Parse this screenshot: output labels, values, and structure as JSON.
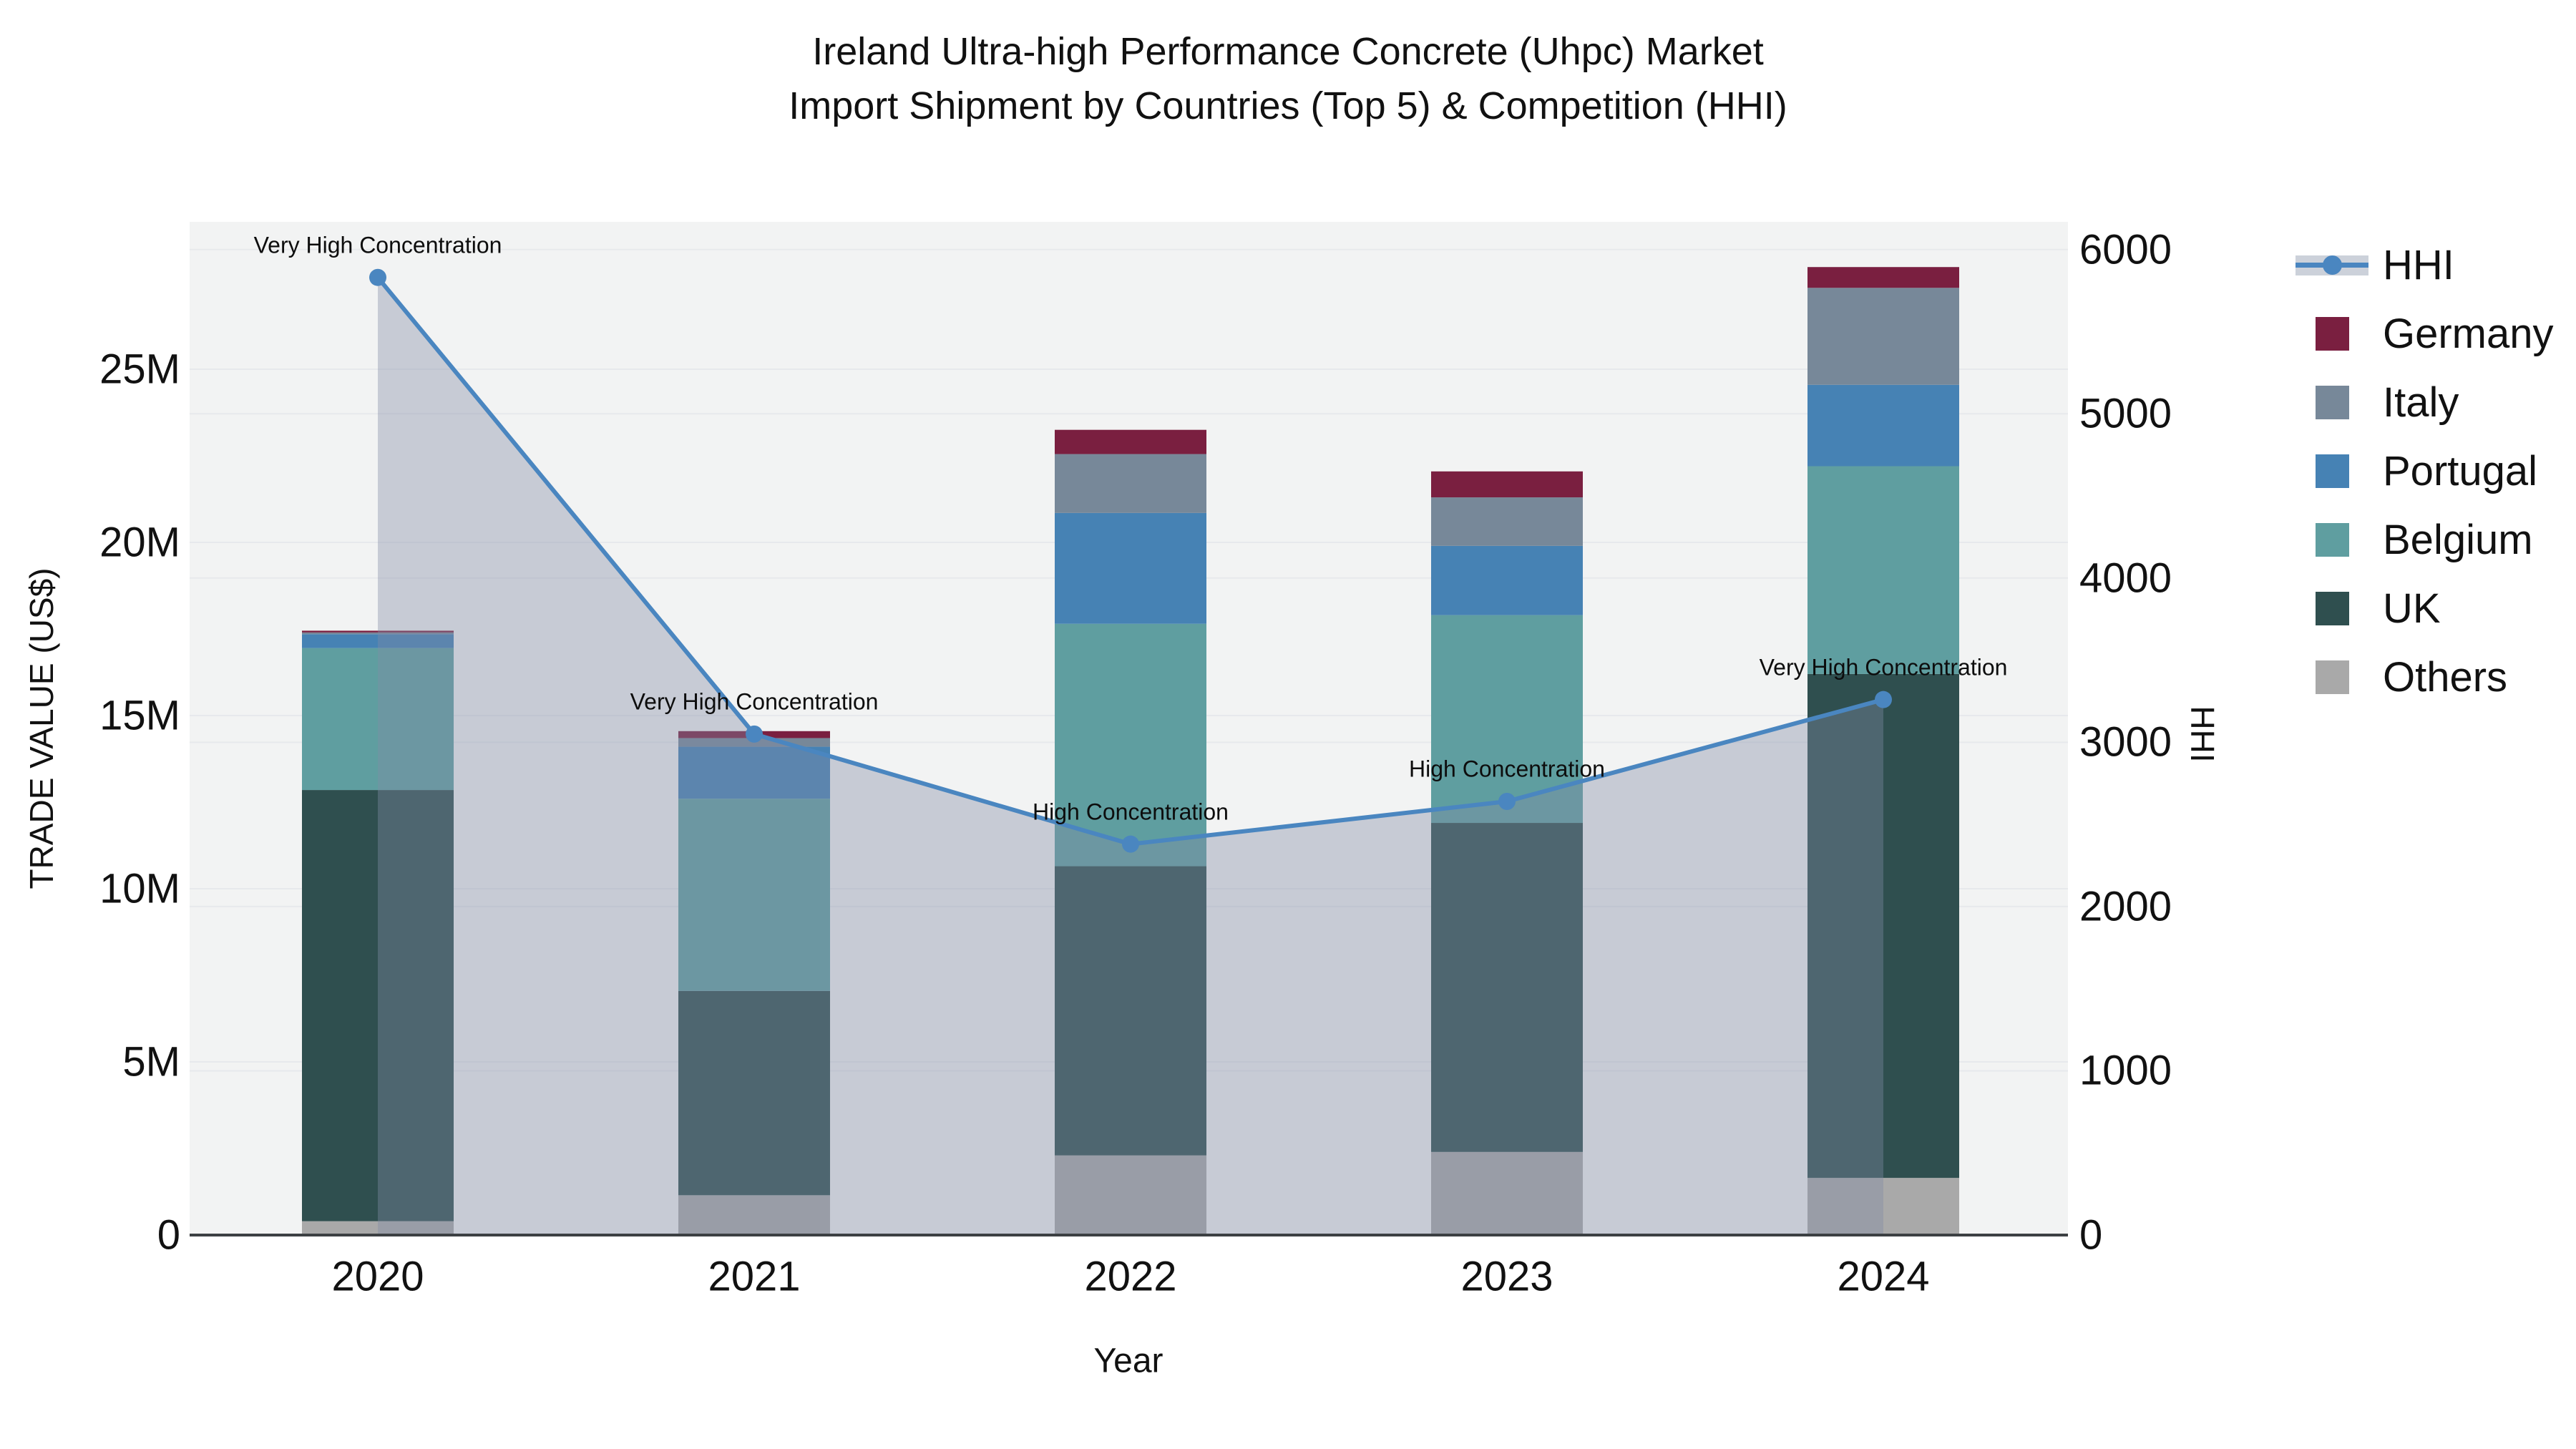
{
  "title": {
    "line1": "Ireland Ultra-high Performance Concrete (Uhpc) Market",
    "line2": "Import Shipment by Countries (Top 5) & Competition (HHI)"
  },
  "axes": {
    "x": {
      "title": "Year",
      "tick_labels": [
        "2020",
        "2021",
        "2022",
        "2023",
        "2024"
      ]
    },
    "y_left": {
      "title": "TRADE VALUE (US$)",
      "tick_labels": [
        "0",
        "5M",
        "10M",
        "15M",
        "20M",
        "25M"
      ],
      "tick_values": [
        0,
        5,
        10,
        15,
        20,
        25
      ]
    },
    "y_right": {
      "title": "HHI",
      "tick_labels": [
        "0",
        "1000",
        "2000",
        "3000",
        "4000",
        "5000",
        "6000"
      ],
      "tick_values": [
        0,
        1000,
        2000,
        3000,
        4000,
        5000,
        6000
      ]
    }
  },
  "legend": {
    "items": [
      {
        "label": "HHI",
        "type": "line",
        "color": "#4a86c0"
      },
      {
        "label": "Germany",
        "type": "square",
        "color": "#7a1f40"
      },
      {
        "label": "Italy",
        "type": "square",
        "color": "#778899"
      },
      {
        "label": "Portugal",
        "type": "square",
        "color": "#4682b4"
      },
      {
        "label": "Belgium",
        "type": "square",
        "color": "#5f9ea0"
      },
      {
        "label": "UK",
        "type": "square",
        "color": "#2f4f4f"
      },
      {
        "label": "Others",
        "type": "square",
        "color": "#a9a9a9"
      }
    ]
  },
  "chart_data": {
    "type": "bar",
    "subtype": "stacked-bar-with-line",
    "title": "Ireland Ultra-high Performance Concrete (Uhpc) Market Import Shipment by Countries (Top 5) & Competition (HHI)",
    "xlabel": "Year",
    "ylabel_left": "TRADE VALUE (US$)",
    "ylabel_right": "HHI",
    "categories": [
      "2020",
      "2021",
      "2022",
      "2023",
      "2024"
    ],
    "value_unit": "million US$",
    "ylim_left_m": [
      0,
      29.3
    ],
    "ylim_right": [
      0,
      6170
    ],
    "grid": true,
    "legend_position": "right",
    "series": [
      {
        "name": "Others",
        "color": "#a9a9a9",
        "values": [
          0.4,
          1.15,
          2.3,
          2.4,
          1.65
        ]
      },
      {
        "name": "UK",
        "color": "#2f4f4f",
        "values": [
          12.45,
          5.9,
          8.35,
          9.5,
          14.55
        ]
      },
      {
        "name": "Belgium",
        "color": "#5f9ea0",
        "values": [
          4.1,
          5.55,
          7.0,
          6.0,
          6.0
        ]
      },
      {
        "name": "Portugal",
        "color": "#4682b4",
        "values": [
          0.4,
          1.5,
          3.2,
          2.0,
          2.35
        ]
      },
      {
        "name": "Italy",
        "color": "#778899",
        "values": [
          0.05,
          0.25,
          1.7,
          1.4,
          2.8
        ]
      },
      {
        "name": "Germany",
        "color": "#7a1f40",
        "values": [
          0.05,
          0.2,
          0.7,
          0.75,
          0.6
        ]
      }
    ],
    "line_series": {
      "name": "HHI",
      "axis": "right",
      "color": "#4a86c0",
      "area_fill": "rgba(130,140,165,0.38)",
      "values": [
        5830,
        3050,
        2380,
        2640,
        3260
      ]
    },
    "annotations": [
      {
        "category": "2020",
        "text": "Very High Concentration"
      },
      {
        "category": "2021",
        "text": "Very High Concentration"
      },
      {
        "category": "2022",
        "text": "High Concentration"
      },
      {
        "category": "2023",
        "text": "High Concentration"
      },
      {
        "category": "2024",
        "text": "Very High Concentration"
      }
    ]
  },
  "colors": {
    "plot_background": "#f2f3f3",
    "page_background": "#ffffff",
    "gridline": "#e7e9ec",
    "axis_line": "#3c4043",
    "text": "#111111"
  }
}
